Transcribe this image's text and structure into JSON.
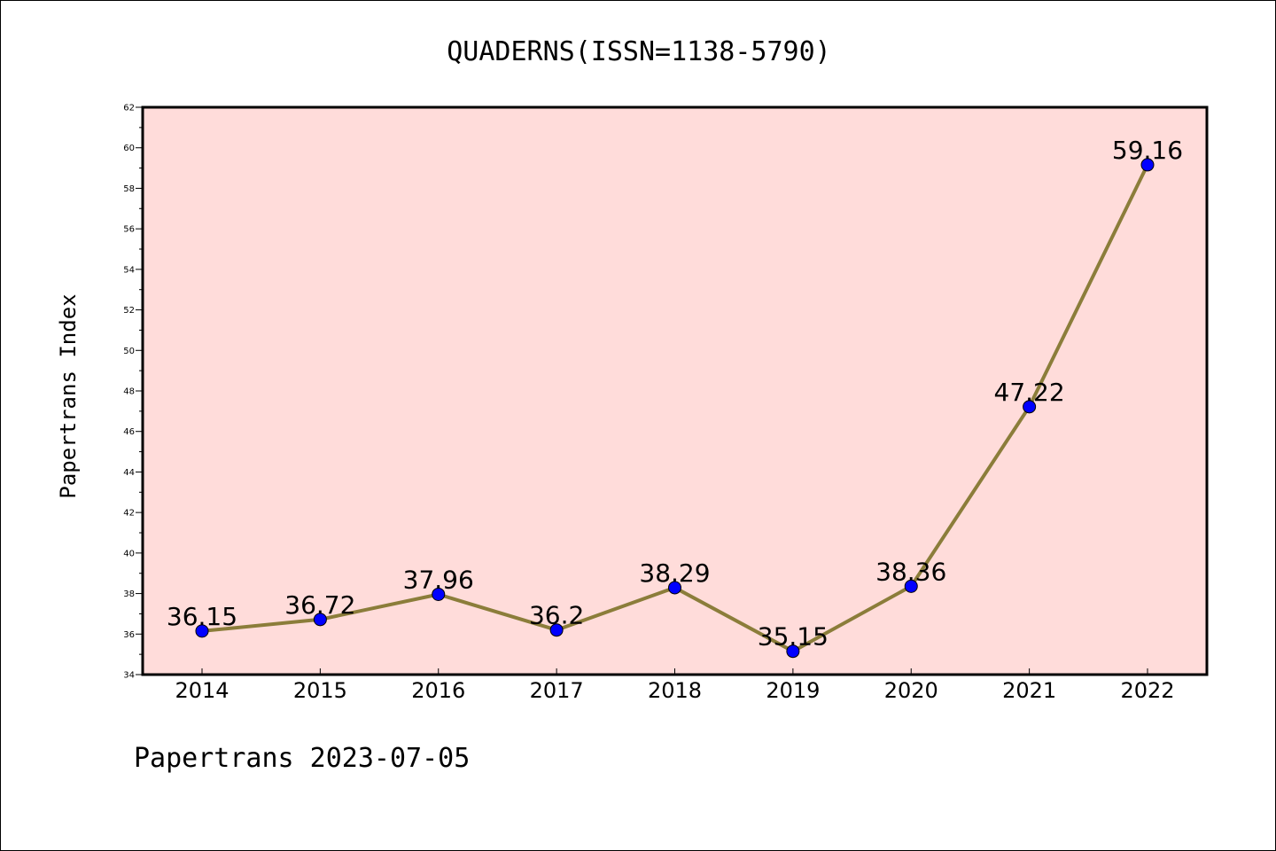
{
  "chart_data": {
    "type": "line",
    "title": "QUADERNS(ISSN=1138-5790)",
    "xlabel": "",
    "ylabel": "Papertrans Index",
    "categories": [
      "2014",
      "2015",
      "2016",
      "2017",
      "2018",
      "2019",
      "2020",
      "2021",
      "2022"
    ],
    "series": [
      {
        "values": [
          36.15,
          36.72,
          37.96,
          36.2,
          38.29,
          35.15,
          38.36,
          47.22,
          59.16
        ],
        "data_labels": [
          "36.15",
          "36.72",
          "37.96",
          "36.2",
          "38.29",
          "35.15",
          "38.36",
          "47.22",
          "59.16"
        ]
      }
    ],
    "ylim": [
      34,
      62
    ],
    "yticks": [
      "34",
      "36",
      "38",
      "40",
      "42",
      "44",
      "46",
      "48",
      "50",
      "52",
      "54",
      "56",
      "58",
      "60",
      "62"
    ],
    "grid": false,
    "legend": "none",
    "colors": {
      "plot_background": "#FFDCDA",
      "line": "#8B7D3A",
      "marker": "#0000FF",
      "axis": "#000000"
    },
    "footer": "Papertrans 2023-07-05"
  }
}
